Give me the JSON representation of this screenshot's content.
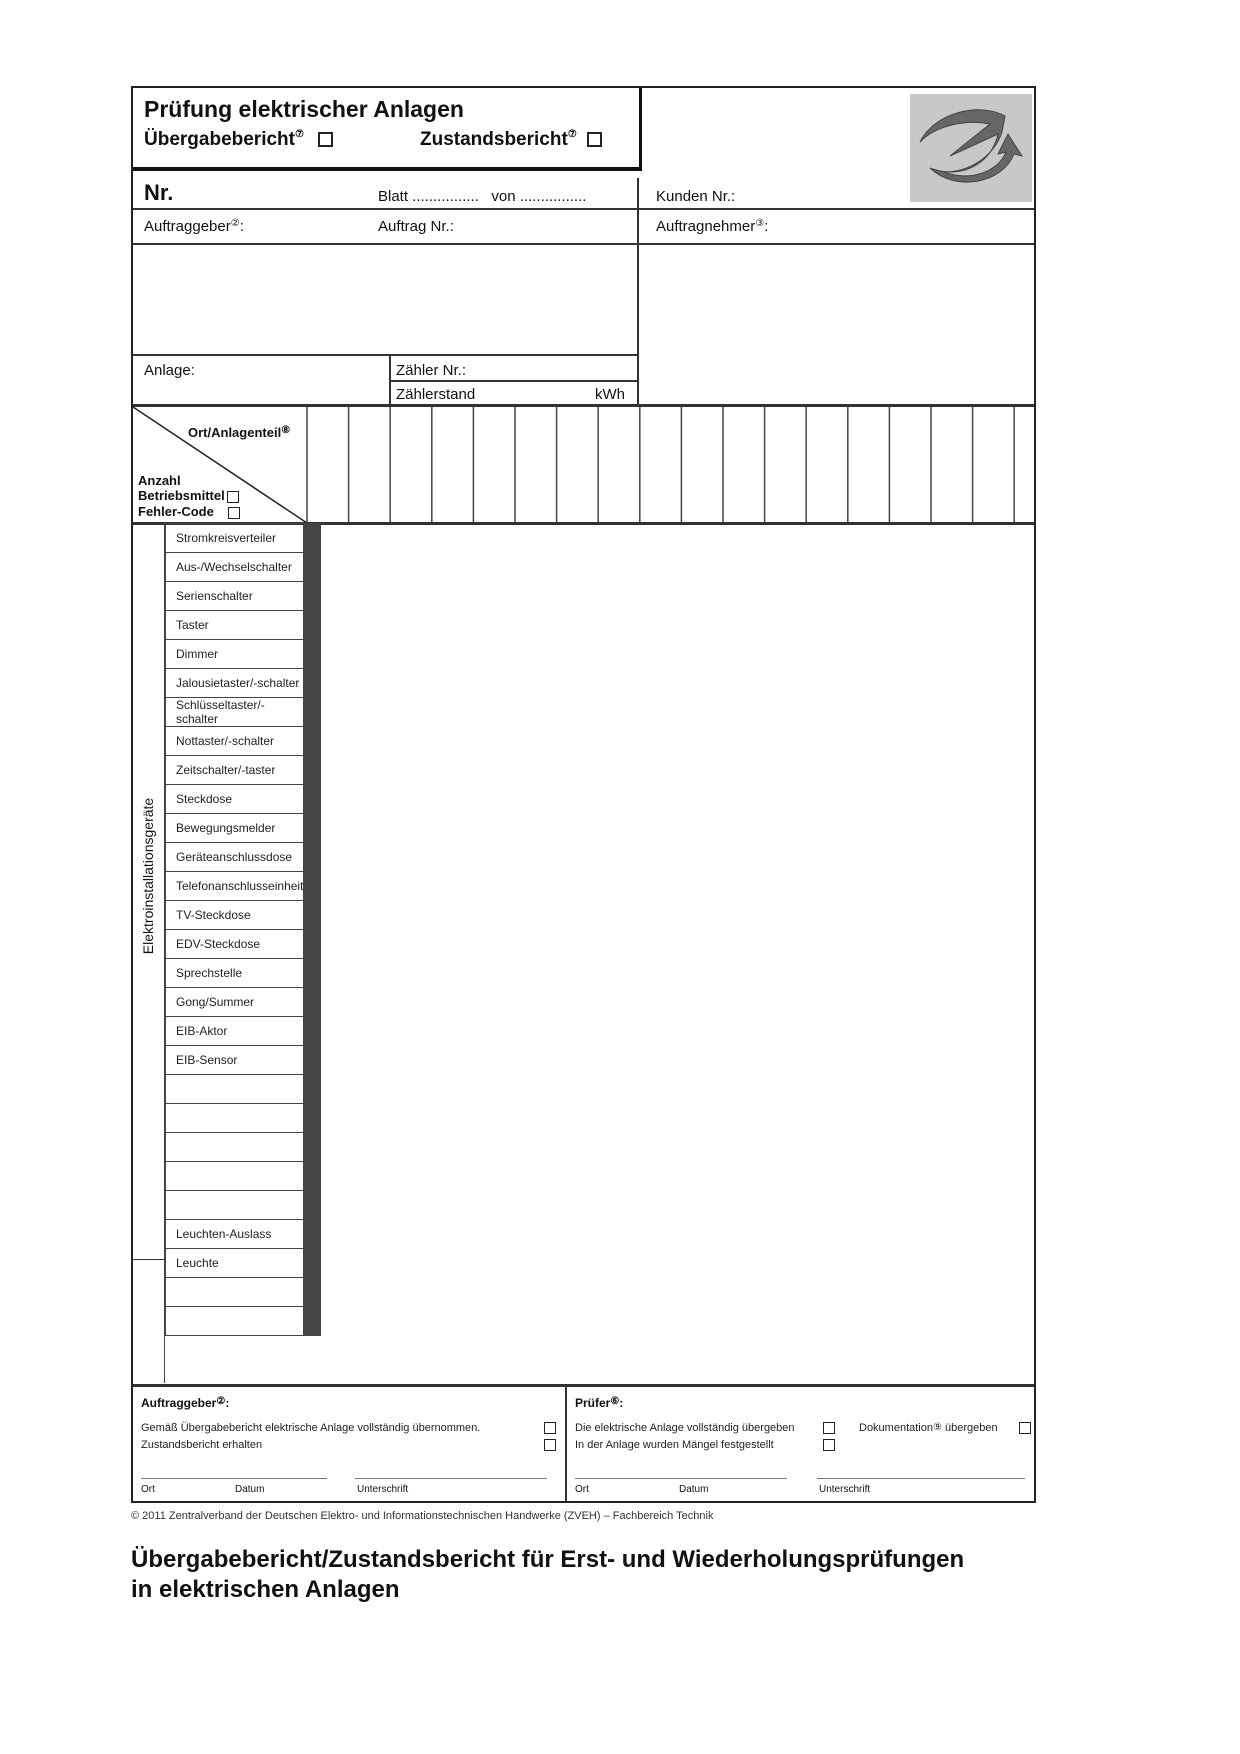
{
  "header": {
    "title": "Prüfung elektrischer Anlagen",
    "report_types": [
      {
        "label": "Übergabebericht",
        "note": "⑦",
        "checked": false
      },
      {
        "label": "Zustandsbericht",
        "note": "⑦",
        "checked": false
      }
    ],
    "logo": "zveh-e-swoosh-logo"
  },
  "fields": {
    "nr": "Nr.",
    "blatt": "Blatt ................",
    "von": "von ................",
    "kunden_nr": "Kunden Nr.:",
    "auftraggeber": "Auftraggeber",
    "auftraggeber_note": "②",
    "auftrag_nr": "Auftrag Nr.:",
    "auftragnehmer": "Auftragnehmer",
    "auftragnehmer_note": "③",
    "anlage": "Anlage:",
    "zaehler_nr": "Zähler Nr.:",
    "zaehlerstand": "Zählerstand",
    "kwh": "kWh"
  },
  "grid": {
    "header_top": "Ort/Anlagenteil",
    "header_top_note": "⑧",
    "header_anzahl": "Anzahl",
    "header_betriebsmittel": "Betriebsmittel",
    "header_fehlercode": "Fehler-Code",
    "group_label": "Elektroinstallationsgeräte",
    "data_columns": 17,
    "rows": [
      "Stromkreisverteiler",
      "Aus-/Wechselschalter",
      "Serienschalter",
      "Taster",
      "Dimmer",
      "Jalousietaster/-schalter",
      "Schlüsseltaster/-schalter",
      "Nottaster/-schalter",
      "Zeitschalter/-taster",
      "Steckdose",
      "Bewegungsmelder",
      "Geräteanschlussdose",
      "Telefonanschlusseinheit",
      "TV-Steckdose",
      "EDV-Steckdose",
      "Sprechstelle",
      "Gong/Summer",
      "EIB-Aktor",
      "EIB-Sensor",
      "",
      "",
      "",
      "",
      "",
      "Leuchten-Auslass",
      "Leuchte",
      "",
      ""
    ]
  },
  "footer": {
    "left": {
      "title": "Auftraggeber",
      "note": "②",
      "items": [
        "Gemäß Übergabebericht elektrische Anlage vollständig übernommen.",
        "Zustandsbericht erhalten"
      ],
      "sig": [
        "Ort",
        "Datum",
        "Unterschrift"
      ]
    },
    "right": {
      "title": "Prüfer",
      "note": "⑥",
      "items": [
        "Die elektrische Anlage vollständig übergeben",
        "In der Anlage wurden Mängel festgestellt"
      ],
      "doc": "Dokumentation",
      "doc_note": "⑨",
      "doc_suffix": "übergeben",
      "sig": [
        "Ort",
        "Datum",
        "Unterschrift"
      ]
    }
  },
  "copyright": "© 2011 Zentralverband der Deutschen Elektro- und Informationstechnischen Handwerke (ZVEH) – Fachbereich Technik",
  "caption_line1": "Übergabebericht/Zustandsbericht für Erst- und Wiederholungsprüfungen",
  "caption_line2": "in elektrischen Anlagen"
}
